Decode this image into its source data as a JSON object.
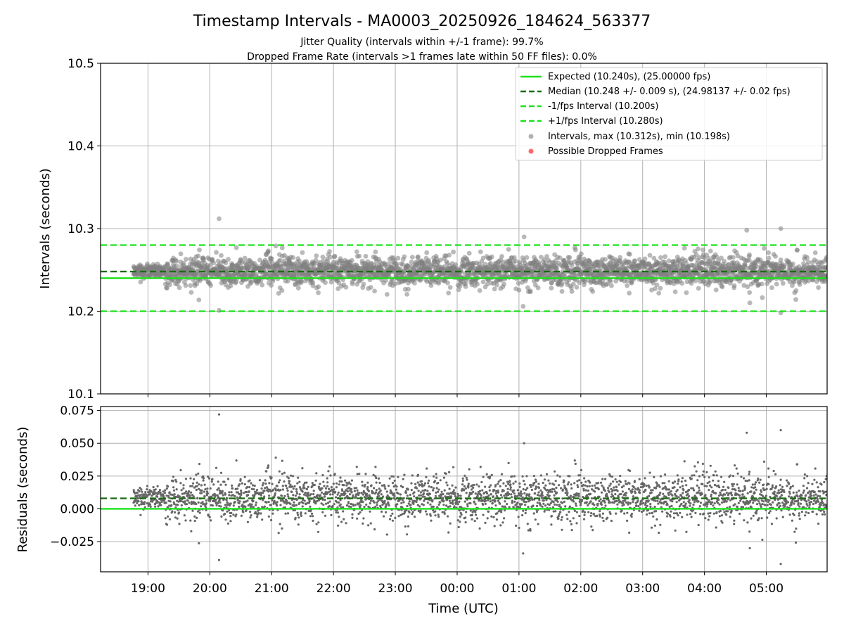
{
  "chart_data": {
    "title": "Timestamp Intervals - MA0003_20250926_184624_563377",
    "subtitles": [
      "Jitter Quality (intervals within +/-1 frame): 99.7%",
      "Dropped Frame Rate (intervals >1 frames late within 50 FF files): 0.0%"
    ],
    "xlabel": "Time (UTC)",
    "x_start": "18:14",
    "x_end": "05:59",
    "x_ticks": [
      "19:00",
      "20:00",
      "21:00",
      "22:00",
      "23:00",
      "00:00",
      "01:00",
      "02:00",
      "03:00",
      "04:00",
      "05:00"
    ],
    "data_start": "18:46",
    "grid": true,
    "legend_position": "top-right",
    "colors": {
      "expected": "#1be21b",
      "median": "#1a6e12",
      "bounds": "#1be21b",
      "points": "#7f7f7f",
      "dropped": "#ff4d4d"
    },
    "top_panel": {
      "type": "scatter",
      "ylabel": "Intervals (seconds)",
      "ylim": [
        10.1,
        10.5
      ],
      "yticks": [
        "10.1",
        "10.2",
        "10.3",
        "10.4",
        "10.5"
      ],
      "expected": 10.24,
      "median": 10.248,
      "lower_bound": 10.2,
      "upper_bound": 10.28,
      "max_interval": 10.312,
      "min_interval": 10.198,
      "legend": [
        {
          "label": "Expected (10.240s), (25.00000 fps)",
          "style": "solid"
        },
        {
          "label": "Median (10.248 +/- 0.009 s), (24.98137 +/- 0.02 fps)",
          "style": "dashed-dark"
        },
        {
          "label": "-1/fps Interval (10.200s)",
          "style": "dashed"
        },
        {
          "label": "+1/fps Interval (10.280s)",
          "style": "dashed"
        },
        {
          "label": "Intervals, max (10.312s), min (10.198s)",
          "style": "dot-gray"
        },
        {
          "label": "Possible Dropped Frames",
          "style": "dot-red"
        }
      ],
      "notable_points": [
        {
          "time": "20:09",
          "value": 10.312
        },
        {
          "time": "20:09",
          "value": 10.201
        },
        {
          "time": "01:05",
          "value": 10.29
        },
        {
          "time": "01:04",
          "value": 10.206
        },
        {
          "time": "04:41",
          "value": 10.298
        },
        {
          "time": "05:14",
          "value": 10.3
        },
        {
          "time": "05:14",
          "value": 10.198
        },
        {
          "time": "04:44",
          "value": 10.21
        }
      ]
    },
    "bottom_panel": {
      "type": "scatter",
      "ylabel": "Residuals (seconds)",
      "ylim": [
        -0.048,
        0.078
      ],
      "yticks": [
        "−0.025",
        "0.000",
        "0.025",
        "0.050",
        "0.075"
      ],
      "ytick_values": [
        -0.025,
        0.0,
        0.025,
        0.05,
        0.075
      ],
      "expected": 0.0,
      "median": 0.008
    },
    "series_summary": {
      "points": "approximately 3000 intervals between 18:46 and 05:59",
      "center": 10.248,
      "spread_sd": 0.009
    }
  }
}
